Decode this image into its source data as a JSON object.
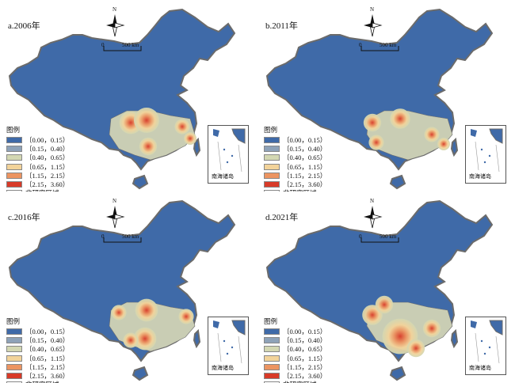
{
  "panels": [
    {
      "title": "a.2006年",
      "hotspots": [
        [
          165,
          155,
          9
        ],
        [
          185,
          152,
          10
        ],
        [
          187,
          185,
          7
        ],
        [
          230,
          160,
          6
        ],
        [
          240,
          175,
          5
        ]
      ]
    },
    {
      "title": "b.2011年",
      "hotspots": [
        [
          505,
          150,
          8
        ],
        [
          470,
          155,
          7
        ],
        [
          475,
          180,
          6
        ],
        [
          545,
          170,
          6
        ],
        [
          560,
          182,
          5
        ]
      ]
    },
    {
      "title": "c.2016年",
      "hotspots": [
        [
          185,
          392,
          9
        ],
        [
          150,
          395,
          6
        ],
        [
          183,
          428,
          9
        ],
        [
          235,
          400,
          6
        ],
        [
          165,
          430,
          6
        ]
      ]
    },
    {
      "title": "d.2021年",
      "hotspots": [
        [
          505,
          425,
          14
        ],
        [
          470,
          398,
          8
        ],
        [
          485,
          385,
          7
        ],
        [
          545,
          415,
          7
        ],
        [
          525,
          440,
          7
        ]
      ]
    }
  ],
  "common": {
    "north": "N",
    "scale_zero": "0",
    "scale_label": "500 km",
    "legend_title": "图例",
    "inset_label": "南海诸岛"
  },
  "legend": [
    {
      "label": "〔0.00，0.15）",
      "color": "#3f6aa8"
    },
    {
      "label": "〔0.15，0.40）",
      "color": "#8ea2b8"
    },
    {
      "label": "〔0.40，0.65）",
      "color": "#d3d7b2"
    },
    {
      "label": "〔0.65，1.15）",
      "color": "#f2d39a"
    },
    {
      "label": "〔1.15，2.15）",
      "color": "#ec9461"
    },
    {
      "label": "〔2.15，3.60）",
      "color": "#d83a28"
    },
    {
      "label": "非研究区域",
      "color": "#ffffff"
    }
  ]
}
